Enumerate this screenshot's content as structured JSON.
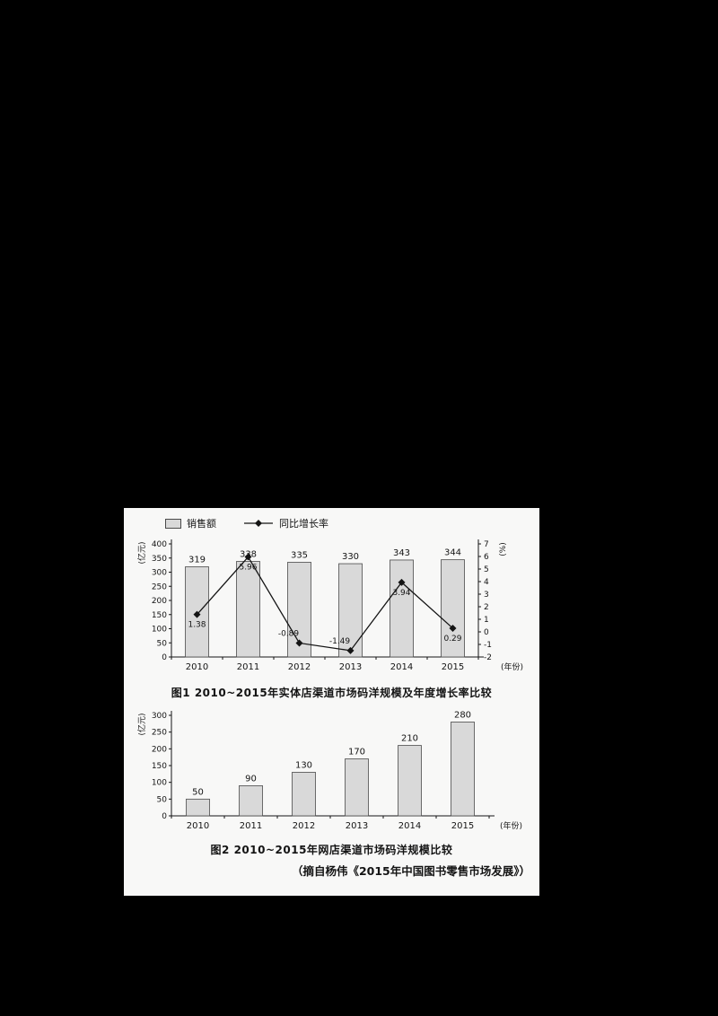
{
  "panel": {
    "source_note": "（摘自杨伟《2015年中国图书零售市场发展》）"
  },
  "chart_data": [
    {
      "type": "bar+line",
      "title": "图1 2010~2015年实体店渠道市场码洋规模及年度增长率比较",
      "categories": [
        "2010",
        "2011",
        "2012",
        "2013",
        "2014",
        "2015"
      ],
      "series": [
        {
          "name": "销售额",
          "type": "bar",
          "axis": "left",
          "values": [
            319,
            338,
            335,
            330,
            343,
            344
          ]
        },
        {
          "name": "同比增长率",
          "type": "line",
          "axis": "right",
          "values": [
            1.38,
            5.96,
            -0.89,
            -1.49,
            3.94,
            0.29
          ]
        }
      ],
      "left_axis": {
        "label": "(亿元)",
        "min": 0,
        "max": 400,
        "step": 50
      },
      "right_axis": {
        "label": "(%)",
        "min": -2,
        "max": 7,
        "step": 1
      },
      "xlabel": "(年份)",
      "legend_position": "top-left",
      "grid": false
    },
    {
      "type": "bar",
      "title": "图2 2010~2015年网店渠道市场码洋规模比较",
      "categories": [
        "2010",
        "2011",
        "2012",
        "2013",
        "2014",
        "2015"
      ],
      "values": [
        50,
        90,
        130,
        170,
        210,
        280
      ],
      "left_axis": {
        "label": "(亿元)",
        "min": 0,
        "max": 300,
        "step": 50
      },
      "xlabel": "(年份)",
      "grid": false
    }
  ]
}
